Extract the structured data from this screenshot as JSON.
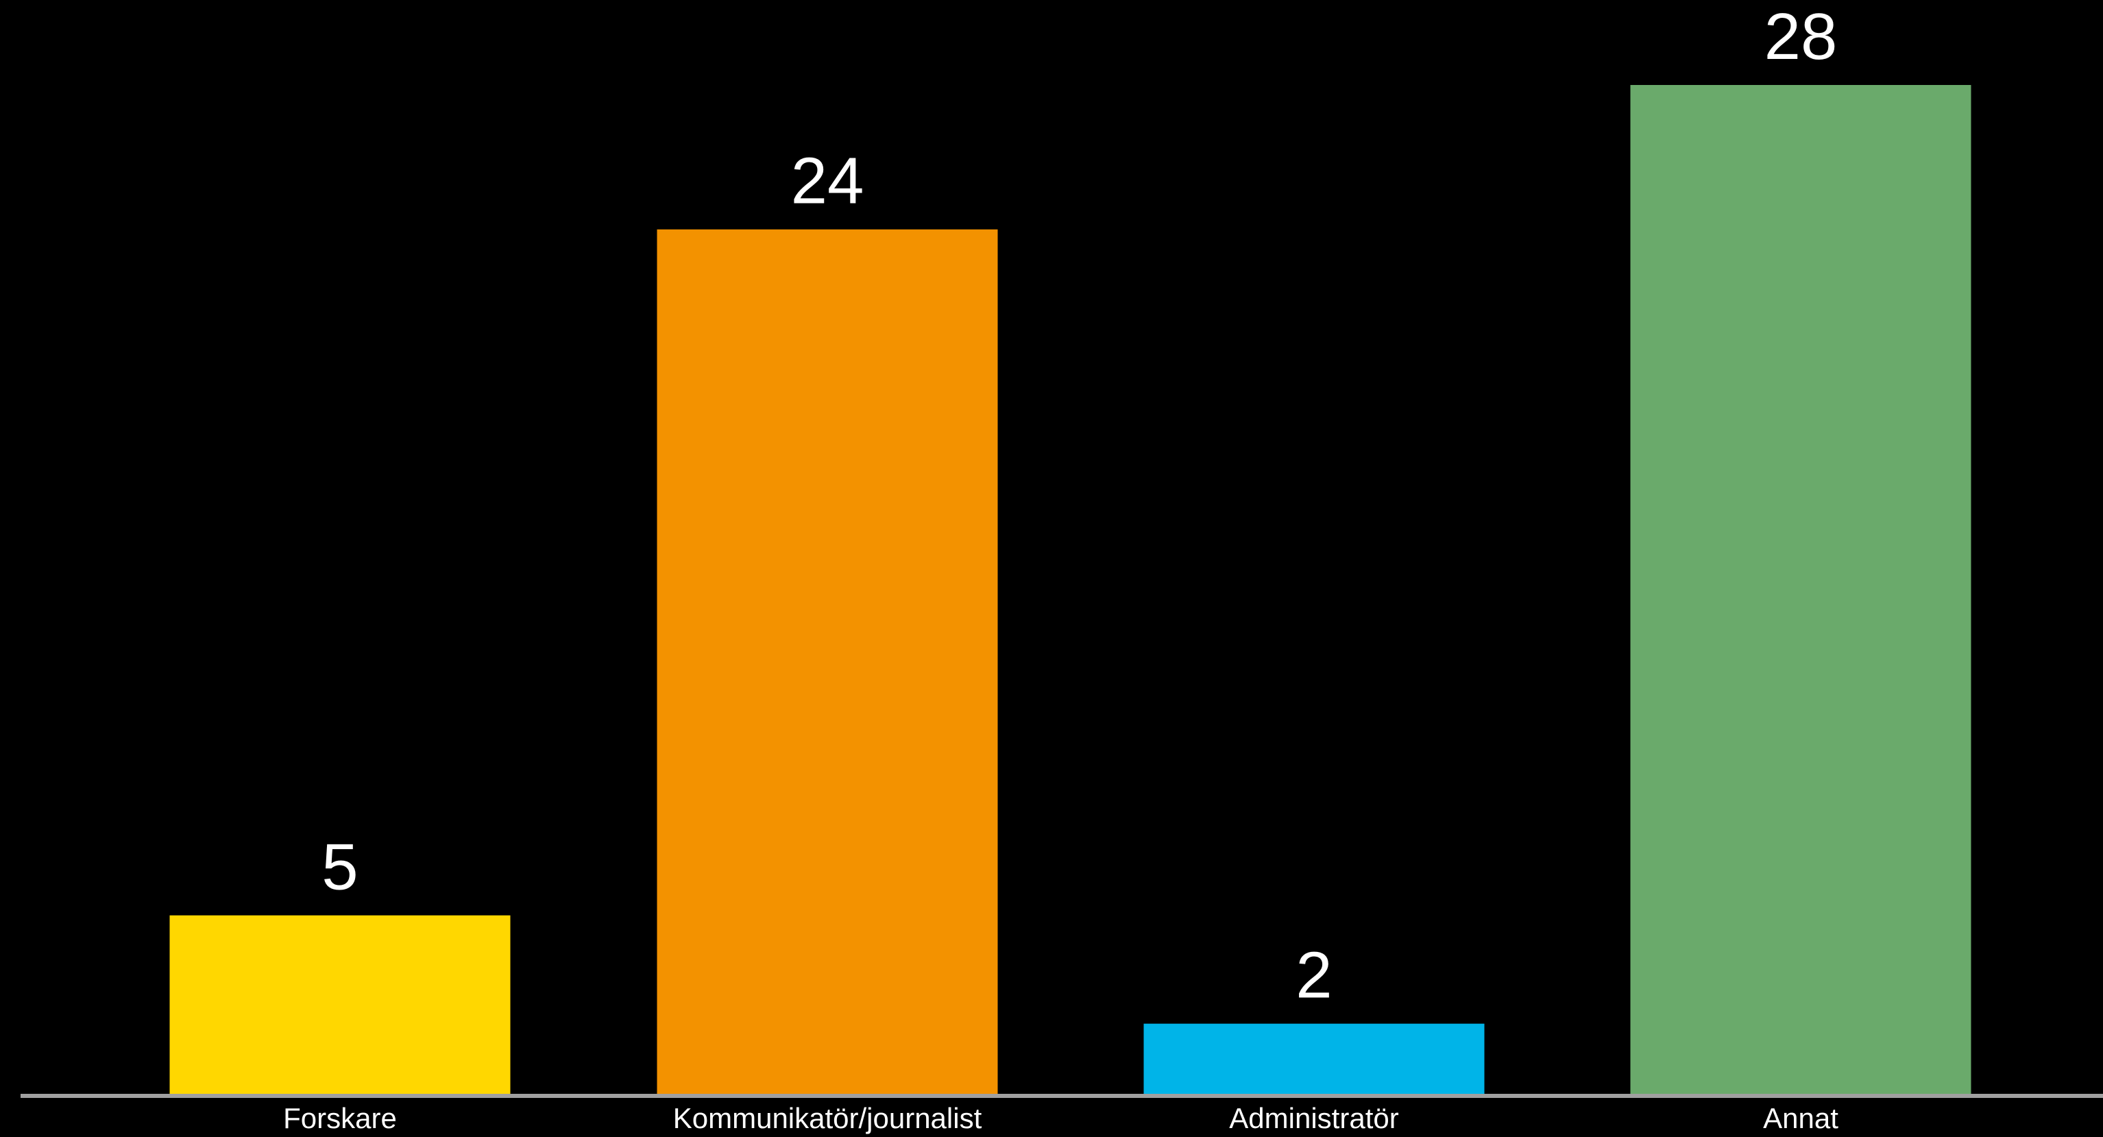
{
  "chart_data": {
    "type": "bar",
    "categories": [
      "Forskare",
      "Kommunikatör/journalist",
      "Administratör",
      "Annat"
    ],
    "values": [
      5,
      24,
      2,
      28
    ],
    "colors": [
      "#ffd700",
      "#f39200",
      "#00b4e8",
      "#6aaa6b"
    ],
    "ylim": [
      0,
      28
    ],
    "grid": false,
    "legend": "none",
    "background": "#000000",
    "baseline_color": "#a0a0a0"
  }
}
